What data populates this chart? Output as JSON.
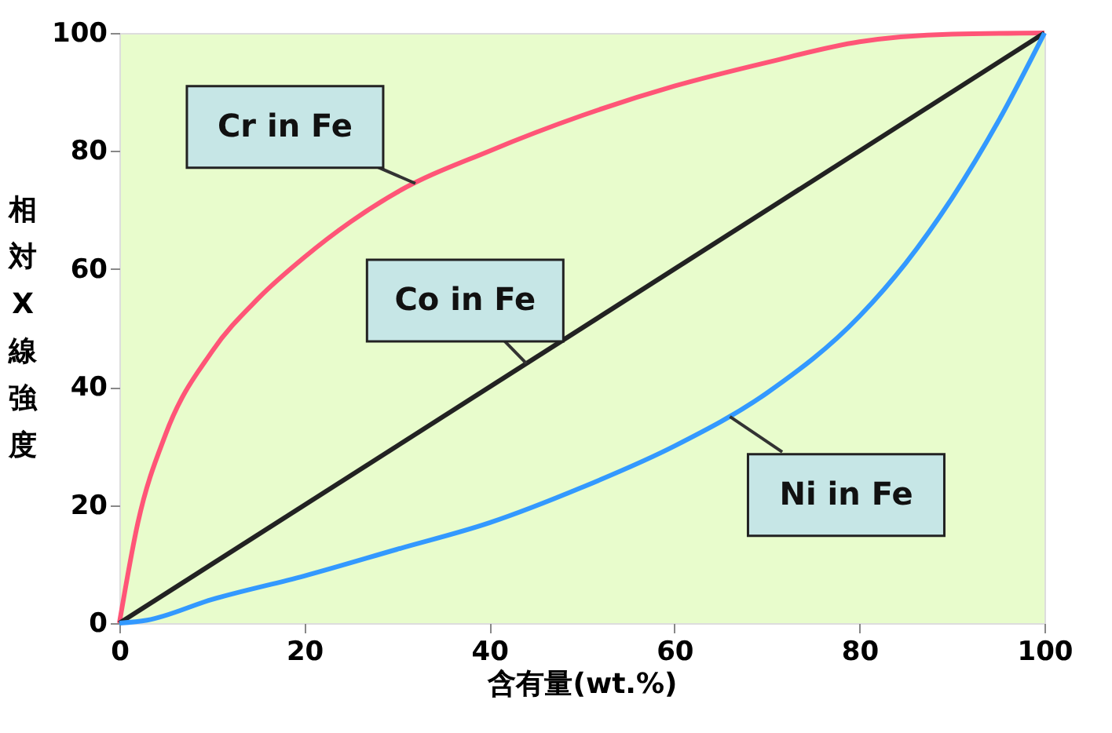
{
  "chart_data": {
    "type": "line",
    "xlabel": "含有量(wt.%)",
    "ylabel": "相対X線強度",
    "xlim": [
      0,
      100
    ],
    "ylim": [
      0,
      100
    ],
    "xticks": [
      0,
      20,
      40,
      60,
      80,
      100
    ],
    "yticks": [
      0,
      20,
      40,
      60,
      80,
      100
    ],
    "grid": false,
    "marker": "none",
    "line_style": "solid",
    "series": [
      {
        "color": "#ff5577",
        "x": [
          0,
          2,
          5,
          10,
          15,
          20,
          25,
          30,
          40,
          50,
          60,
          70,
          80,
          90,
          100
        ],
        "values": [
          0,
          17,
          32,
          46,
          55,
          62,
          68,
          73,
          80,
          86,
          91,
          95,
          98.5,
          99.8,
          100
        ]
      },
      {
        "color": "#222222",
        "x": [
          0,
          100
        ],
        "values": [
          0,
          100
        ]
      },
      {
        "color": "#3399ff",
        "x": [
          0,
          3,
          10,
          20,
          30,
          40,
          50,
          60,
          70,
          80,
          85,
          90,
          95,
          100
        ],
        "values": [
          0,
          0.5,
          4,
          8,
          12.5,
          17,
          23,
          30,
          39,
          52,
          61,
          72,
          85,
          100
        ]
      }
    ],
    "annotations": [
      {
        "text": "Cr in Fe",
        "x": 32,
        "y": 74.5
      },
      {
        "text": "Co in Fe",
        "x": 44,
        "y": 44
      },
      {
        "text": "Ni in Fe",
        "x": 66,
        "y": 35
      }
    ]
  }
}
